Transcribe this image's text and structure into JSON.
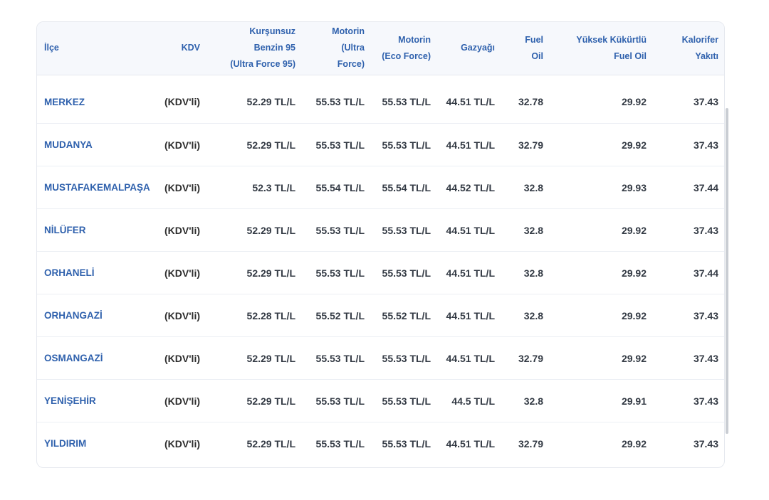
{
  "table": {
    "headers": {
      "ilce": "İlçe",
      "kdv": "KDV",
      "kursunsuz": [
        "Kurşunsuz",
        "Benzin 95",
        "(Ultra Force 95)"
      ],
      "motorin_ultra": [
        "Motorin",
        "(Ultra",
        "Force)"
      ],
      "motorin_eco": [
        "Motorin",
        "(Eco Force)"
      ],
      "gazyagi": "Gazyağı",
      "fuel_oil": [
        "Fuel",
        "Oil"
      ],
      "yuksek_kukurtlu": [
        "Yüksek Kükürtlü",
        "Fuel Oil"
      ],
      "kalorifer": [
        "Kalorifer",
        "Yakıtı"
      ]
    },
    "rows": [
      {
        "ilce": "MERKEZ",
        "kdv": "(KDV'li)",
        "kursunsuz": "52.29 TL/L",
        "motorin_ultra": "55.53 TL/L",
        "motorin_eco": "55.53 TL/L",
        "gazyagi": "44.51 TL/L",
        "fuel_oil": "32.78",
        "yuksek_kukurtlu": "29.92",
        "kalorifer": "37.43"
      },
      {
        "ilce": "MUDANYA",
        "kdv": "(KDV'li)",
        "kursunsuz": "52.29 TL/L",
        "motorin_ultra": "55.53 TL/L",
        "motorin_eco": "55.53 TL/L",
        "gazyagi": "44.51 TL/L",
        "fuel_oil": "32.79",
        "yuksek_kukurtlu": "29.92",
        "kalorifer": "37.43"
      },
      {
        "ilce": "MUSTAFAKEMALPAŞA",
        "kdv": "(KDV'li)",
        "kursunsuz": "52.3 TL/L",
        "motorin_ultra": "55.54 TL/L",
        "motorin_eco": "55.54 TL/L",
        "gazyagi": "44.52 TL/L",
        "fuel_oil": "32.8",
        "yuksek_kukurtlu": "29.93",
        "kalorifer": "37.44"
      },
      {
        "ilce": "NİLÜFER",
        "kdv": "(KDV'li)",
        "kursunsuz": "52.29 TL/L",
        "motorin_ultra": "55.53 TL/L",
        "motorin_eco": "55.53 TL/L",
        "gazyagi": "44.51 TL/L",
        "fuel_oil": "32.8",
        "yuksek_kukurtlu": "29.92",
        "kalorifer": "37.43"
      },
      {
        "ilce": "ORHANELİ",
        "kdv": "(KDV'li)",
        "kursunsuz": "52.29 TL/L",
        "motorin_ultra": "55.53 TL/L",
        "motorin_eco": "55.53 TL/L",
        "gazyagi": "44.51 TL/L",
        "fuel_oil": "32.8",
        "yuksek_kukurtlu": "29.92",
        "kalorifer": "37.44"
      },
      {
        "ilce": "ORHANGAZİ",
        "kdv": "(KDV'li)",
        "kursunsuz": "52.28 TL/L",
        "motorin_ultra": "55.52 TL/L",
        "motorin_eco": "55.52 TL/L",
        "gazyagi": "44.51 TL/L",
        "fuel_oil": "32.8",
        "yuksek_kukurtlu": "29.92",
        "kalorifer": "37.43"
      },
      {
        "ilce": "OSMANGAZİ",
        "kdv": "(KDV'li)",
        "kursunsuz": "52.29 TL/L",
        "motorin_ultra": "55.53 TL/L",
        "motorin_eco": "55.53 TL/L",
        "gazyagi": "44.51 TL/L",
        "fuel_oil": "32.79",
        "yuksek_kukurtlu": "29.92",
        "kalorifer": "37.43"
      },
      {
        "ilce": "YENİŞEHİR",
        "kdv": "(KDV'li)",
        "kursunsuz": "52.29 TL/L",
        "motorin_ultra": "55.53 TL/L",
        "motorin_eco": "55.53 TL/L",
        "gazyagi": "44.5 TL/L",
        "fuel_oil": "32.8",
        "yuksek_kukurtlu": "29.91",
        "kalorifer": "37.43"
      },
      {
        "ilce": "YILDIRIM",
        "kdv": "(KDV'li)",
        "kursunsuz": "52.29 TL/L",
        "motorin_ultra": "55.53 TL/L",
        "motorin_eco": "55.53 TL/L",
        "gazyagi": "44.51 TL/L",
        "fuel_oil": "32.79",
        "yuksek_kukurtlu": "29.92",
        "kalorifer": "37.43"
      }
    ]
  },
  "colors": {
    "header_text": "#2f61ad",
    "district_text": "#2f61ad",
    "body_text": "#333a44",
    "header_bg": "#f6f8fc",
    "row_border": "#eceff4"
  }
}
